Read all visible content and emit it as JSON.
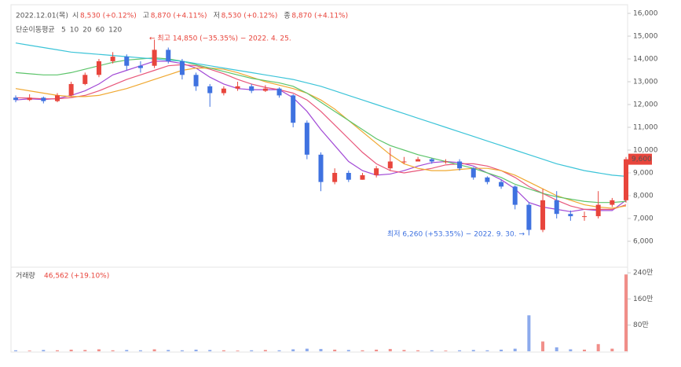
{
  "chart_data": {
    "type": "candlestick",
    "date": "2022.12.01(목)",
    "header": [
      {
        "label": "시",
        "value": "8,530 (+0.12%)"
      },
      {
        "label": "고",
        "value": "8,870 (+4.11%)"
      },
      {
        "label": "저",
        "value": "8,530 (+0.12%)"
      },
      {
        "label": "종",
        "value": "8,870 (+4.11%)"
      }
    ],
    "ma_title": "단순이동평균",
    "up_color": "#e8453c",
    "down_color": "#3f72e0",
    "open": [
      12300,
      12200,
      12300,
      12150,
      12400,
      12900,
      13300,
      13900,
      14100,
      13700,
      13700,
      14400,
      13900,
      13300,
      12800,
      12500,
      12700,
      12800,
      12600,
      12700,
      12400,
      11200,
      9800,
      8600,
      9000,
      8700,
      8900,
      9200,
      9500,
      9500,
      9600,
      9500,
      9500,
      9200,
      8800,
      8600,
      8400,
      7600,
      6500,
      7800,
      7200,
      7100,
      7100,
      7600,
      7800
    ],
    "high": [
      12400,
      12450,
      12350,
      12500,
      13000,
      13400,
      14000,
      14300,
      14200,
      13900,
      14850,
      14500,
      14000,
      13400,
      12900,
      12800,
      13000,
      12900,
      12850,
      12750,
      12450,
      11300,
      9900,
      9200,
      9100,
      9000,
      9300,
      10100,
      9700,
      9700,
      9650,
      9600,
      9600,
      9250,
      8850,
      8700,
      8450,
      7700,
      8300,
      8200,
      7350,
      7300,
      8200,
      7900,
      9700
    ],
    "low": [
      12100,
      12150,
      12050,
      12100,
      12350,
      12850,
      13200,
      13800,
      13500,
      13400,
      13600,
      13800,
      13100,
      12600,
      11900,
      12400,
      12600,
      12500,
      12550,
      12300,
      11000,
      9600,
      8200,
      8500,
      8600,
      8700,
      8800,
      9100,
      9400,
      9500,
      9400,
      9400,
      9100,
      8700,
      8500,
      8300,
      7400,
      6260,
      6400,
      7000,
      6900,
      6900,
      7000,
      7500,
      7700
    ],
    "close": [
      12200,
      12300,
      12150,
      12400,
      12900,
      13300,
      13900,
      14100,
      13700,
      13600,
      14400,
      13900,
      13300,
      12800,
      12500,
      12700,
      12800,
      12600,
      12700,
      12400,
      11200,
      9800,
      8600,
      9000,
      8700,
      8900,
      9200,
      9500,
      9500,
      9600,
      9500,
      9500,
      9200,
      8800,
      8600,
      8400,
      7600,
      6500,
      7800,
      7200,
      7100,
      7100,
      7600,
      7800,
      9600
    ],
    "moving_averages": [
      {
        "name": "5",
        "color": "#a24ad6",
        "values": [
          12200,
          12250,
          12220,
          12260,
          12400,
          12600,
          12900,
          13300,
          13500,
          13700,
          13900,
          13900,
          13800,
          13600,
          13200,
          12900,
          12700,
          12650,
          12650,
          12650,
          12300,
          11700,
          10900,
          10200,
          9500,
          9100,
          8900,
          8950,
          9100,
          9300,
          9450,
          9500,
          9450,
          9300,
          9000,
          8700,
          8300,
          7700,
          7500,
          7400,
          7300,
          7400,
          7350,
          7350,
          7800
        ]
      },
      {
        "name": "10",
        "color": "#e8577a",
        "values": [
          12300,
          12280,
          12250,
          12250,
          12300,
          12400,
          12600,
          12850,
          13100,
          13300,
          13500,
          13700,
          13750,
          13700,
          13550,
          13350,
          13100,
          12900,
          12750,
          12650,
          12500,
          12200,
          11700,
          11100,
          10500,
          9900,
          9400,
          9100,
          9000,
          9100,
          9200,
          9350,
          9400,
          9400,
          9300,
          9100,
          8800,
          8400,
          8100,
          7800,
          7550,
          7400,
          7400,
          7400,
          7600
        ]
      },
      {
        "name": "20",
        "color": "#f0a830",
        "values": [
          12700,
          12600,
          12500,
          12400,
          12350,
          12350,
          12400,
          12550,
          12700,
          12900,
          13100,
          13300,
          13500,
          13600,
          13600,
          13550,
          13400,
          13200,
          13000,
          12850,
          12700,
          12500,
          12200,
          11800,
          11300,
          10800,
          10300,
          9800,
          9400,
          9200,
          9100,
          9100,
          9150,
          9200,
          9200,
          9100,
          8900,
          8600,
          8300,
          8000,
          7800,
          7600,
          7500,
          7450,
          7550
        ]
      },
      {
        "name": "60",
        "color": "#5cc46a",
        "values": [
          13400,
          13350,
          13300,
          13300,
          13400,
          13550,
          13700,
          13850,
          13950,
          14000,
          14050,
          14000,
          13900,
          13750,
          13600,
          13450,
          13300,
          13150,
          13050,
          12950,
          12800,
          12500,
          12100,
          11700,
          11300,
          10900,
          10500,
          10200,
          10000,
          9800,
          9650,
          9500,
          9350,
          9200,
          9000,
          8800,
          8500,
          8300,
          8100,
          7950,
          7850,
          7750,
          7700,
          7700,
          7750
        ]
      },
      {
        "name": "120",
        "color": "#3cc4d8",
        "values": [
          14700,
          14600,
          14500,
          14400,
          14300,
          14250,
          14200,
          14150,
          14100,
          14050,
          14000,
          13950,
          13900,
          13800,
          13700,
          13600,
          13500,
          13400,
          13300,
          13200,
          13100,
          12950,
          12800,
          12600,
          12400,
          12200,
          12000,
          11800,
          11600,
          11400,
          11200,
          11000,
          10800,
          10600,
          10400,
          10200,
          10000,
          9800,
          9600,
          9400,
          9250,
          9100,
          9000,
          8900,
          8850
        ]
      }
    ],
    "ylim": [
      5000,
      16000
    ],
    "yticks": [
      {
        "value": 6000,
        "label": "6,000"
      },
      {
        "value": 7000,
        "label": "7,000"
      },
      {
        "value": 8000,
        "label": "8,000"
      },
      {
        "value": 9000,
        "label": "9,000"
      },
      {
        "value": 10000,
        "label": "10,000"
      },
      {
        "value": 11000,
        "label": "11,000"
      },
      {
        "value": 12000,
        "label": "12,000"
      },
      {
        "value": 13000,
        "label": "13,000"
      },
      {
        "value": 14000,
        "label": "14,000"
      },
      {
        "value": 15000,
        "label": "15,000"
      },
      {
        "value": 16000,
        "label": "16,000"
      }
    ],
    "last_price": {
      "value": 9600,
      "label": "9,600"
    },
    "high_annotation": "← 최고 14,850 (−35.35%) − 2022. 4. 25.",
    "low_annotation": "최저 6,260 (+53.35%) − 2022. 9. 30. →",
    "volume_title": "거래량",
    "volume_summary": "46,562 (+19.10%)",
    "volume": [
      3,
      2,
      4,
      3,
      5,
      4,
      6,
      3,
      4,
      3,
      6,
      4,
      3,
      5,
      4,
      3,
      2,
      3,
      4,
      3,
      6,
      8,
      7,
      5,
      4,
      3,
      5,
      7,
      4,
      3,
      3,
      2,
      3,
      4,
      3,
      5,
      8,
      110,
      30,
      12,
      6,
      5,
      22,
      8,
      235
    ],
    "volume_ylim": [
      0,
      250
    ],
    "volume_yticks": [
      {
        "value": 80,
        "label": "80만"
      },
      {
        "value": 160,
        "label": "160만"
      },
      {
        "value": 240,
        "label": "240만"
      }
    ]
  }
}
